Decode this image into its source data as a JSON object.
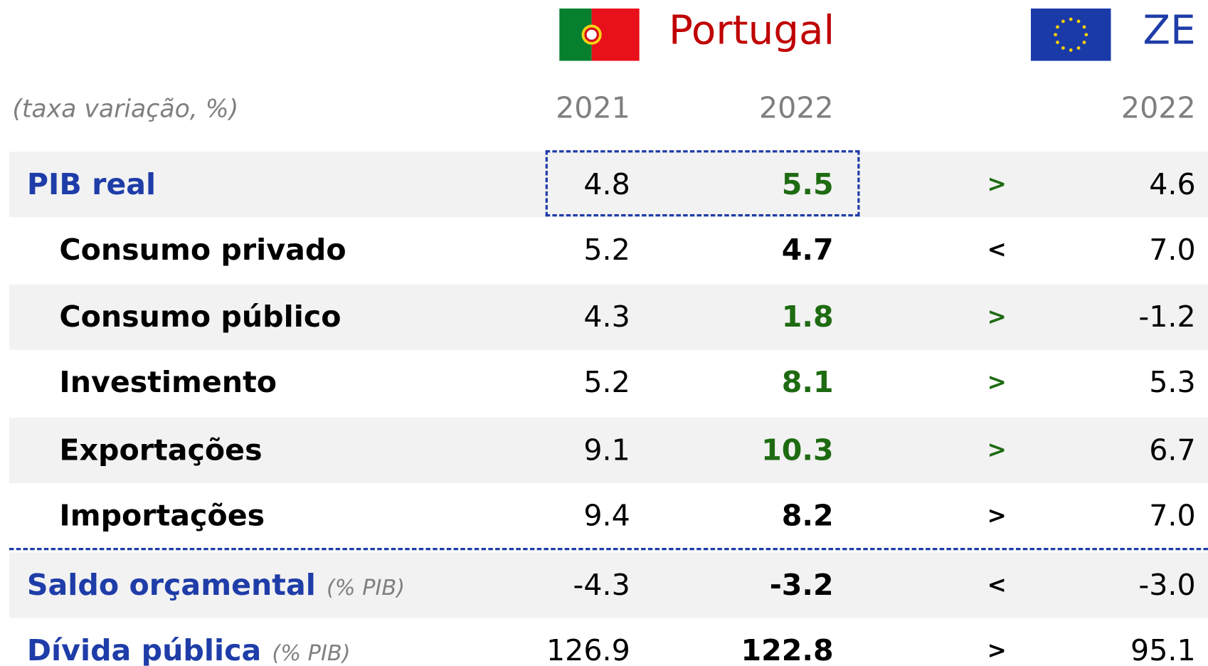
{
  "header": {
    "portugal": "Portugal",
    "ze": "ZE",
    "unit": "(taxa variação, %)",
    "years": [
      "2021",
      "2022",
      "2022"
    ]
  },
  "rows": [
    {
      "label": "PIB real",
      "values": [
        "4.8",
        "5.5",
        "4.6"
      ],
      "comparison": ">"
    },
    {
      "label": "Consumo privado",
      "values": [
        "5.2",
        "4.7",
        "7.0"
      ],
      "comparison": "<"
    },
    {
      "label": "Consumo público",
      "values": [
        "4.3",
        "1.8",
        "-1.2"
      ],
      "comparison": ">"
    },
    {
      "label": "Investimento",
      "values": [
        "5.2",
        "8.1",
        "5.3"
      ],
      "comparison": ">"
    },
    {
      "label": "Exportações",
      "values": [
        "9.1",
        "10.3",
        "6.7"
      ],
      "comparison": ">"
    },
    {
      "label": "Importações",
      "values": [
        "9.4",
        "8.2",
        "7.0"
      ],
      "comparison": ">"
    },
    {
      "label": "Saldo orçamental",
      "note": "(% PIB)",
      "values": [
        "-4.3",
        "-3.2",
        "-3.0"
      ],
      "comparison": "<"
    },
    {
      "label": "Dívida pública",
      "note": "(% PIB)",
      "values": [
        "126.9",
        "122.8",
        "95.1"
      ],
      "comparison": ">"
    }
  ]
}
